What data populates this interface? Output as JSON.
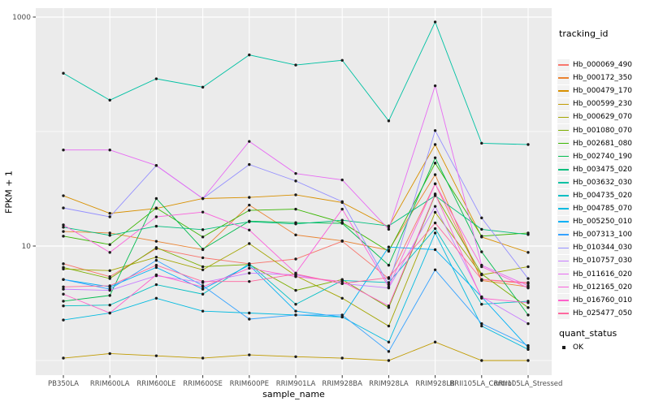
{
  "colors": {
    "panel_bg": "#EBEBEB",
    "grid": "#FFFFFF",
    "point": "#1a1a1a",
    "tick_text": "#4D4D4D",
    "tick_mark": "#333333",
    "legend_key_bg": "#F2F2F2"
  },
  "legend": {
    "tracking_title": "tracking_id",
    "quant_title": "quant_status",
    "quant_item": "OK"
  },
  "chart_data": {
    "type": "line",
    "title": "",
    "xlabel": "sample_name",
    "ylabel": "FPKM + 1",
    "y_scale": "log10",
    "ylim": [
      0.9,
      1200
    ],
    "y_ticks_labeled": [
      1000,
      10
    ],
    "y_gridlines": [
      1000,
      100,
      10,
      1
    ],
    "grid": true,
    "legend_position": "right",
    "legend_title": "tracking_id",
    "quant_status": {
      "title": "quant_status",
      "items": [
        "OK"
      ]
    },
    "categories": [
      "PB350LA",
      "RRIM600LA",
      "RRIM600LE",
      "RRIM600SE",
      "RRIM600PE",
      "RRIM901LA",
      "RRIM928BA",
      "RRIM928LA",
      "RRIM928LB",
      "RRII105LA_Control",
      "RRII105LA_Stressed"
    ],
    "series": [
      {
        "name": "Hb_000069_490",
        "color": "#F8766D",
        "values": [
          7.0,
          5.4,
          9.5,
          7.9,
          7.0,
          7.7,
          11.0,
          5.2,
          35,
          5.1,
          4.7
        ]
      },
      {
        "name": "Hb_000172_350",
        "color": "#EA8331",
        "values": [
          13.4,
          13.0,
          11.0,
          9.3,
          22.8,
          12.5,
          11.1,
          9.2,
          42,
          5.0,
          4.4
        ]
      },
      {
        "name": "Hb_000479_170",
        "color": "#D89000",
        "values": [
          27.5,
          19.3,
          21.3,
          26.0,
          26.6,
          28.0,
          24.0,
          14.7,
          77,
          12.0,
          8.8
        ]
      },
      {
        "name": "Hb_000599_230",
        "color": "#C09B00",
        "values": [
          1.05,
          1.15,
          1.1,
          1.05,
          1.12,
          1.08,
          1.05,
          1.0,
          1.45,
          1.0,
          1.0
        ]
      },
      {
        "name": "Hb_000629_070",
        "color": "#A3A500",
        "values": [
          6.3,
          6.1,
          8.0,
          6.2,
          10.5,
          5.5,
          3.5,
          2.0,
          19.7,
          5.6,
          6.6
        ]
      },
      {
        "name": "Hb_001080_070",
        "color": "#7CAE00",
        "values": [
          6.5,
          5.2,
          9.7,
          6.6,
          6.9,
          4.1,
          5.1,
          2.9,
          28,
          5.7,
          2.9
        ]
      },
      {
        "name": "Hb_002681_080",
        "color": "#39B600",
        "values": [
          12.2,
          10.3,
          21.5,
          12.0,
          20.5,
          21.0,
          16.0,
          9.0,
          53,
          12.2,
          13.0
        ]
      },
      {
        "name": "Hb_002740_190",
        "color": "#00BB4E",
        "values": [
          3.3,
          3.7,
          26.0,
          9.4,
          16.5,
          16.0,
          15.8,
          6.8,
          59,
          8.9,
          2.5
        ]
      },
      {
        "name": "Hb_003475_020",
        "color": "#00BF7D",
        "values": [
          14.6,
          12.4,
          14.9,
          13.9,
          16.3,
          15.6,
          16.8,
          15.0,
          27.5,
          14.0,
          12.6
        ]
      },
      {
        "name": "Hb_003632_030",
        "color": "#00C1A3",
        "values": [
          323,
          188,
          289,
          244,
          467,
          381,
          419,
          124,
          906,
          79,
          77
        ]
      },
      {
        "name": "Hb_004735_020",
        "color": "#00BFC4",
        "values": [
          3.0,
          3.05,
          4.6,
          3.8,
          7.0,
          3.1,
          5.0,
          4.8,
          14.2,
          3.1,
          3.3
        ]
      },
      {
        "name": "Hb_004785_070",
        "color": "#00BAE0",
        "values": [
          2.26,
          2.6,
          3.5,
          2.7,
          2.6,
          2.5,
          2.4,
          1.45,
          13.0,
          2.0,
          1.25
        ]
      },
      {
        "name": "Hb_005250_010",
        "color": "#00B0F6",
        "values": [
          5.1,
          4.4,
          6.5,
          4.2,
          6.8,
          2.7,
          2.4,
          9.8,
          9.3,
          3.6,
          1.3
        ]
      },
      {
        "name": "Hb_007313_100",
        "color": "#35A2FF",
        "values": [
          5.1,
          4.2,
          7.5,
          4.5,
          2.3,
          2.5,
          2.5,
          1.2,
          6.2,
          2.1,
          1.35
        ]
      },
      {
        "name": "Hb_010344_030",
        "color": "#9590FF",
        "values": [
          21.5,
          18.0,
          50.5,
          26.0,
          51.5,
          37.0,
          24.4,
          4.6,
          102,
          17.6,
          5.2
        ]
      },
      {
        "name": "Hb_010757_030",
        "color": "#C77CFF",
        "values": [
          4.2,
          4.1,
          5.5,
          4.8,
          5.8,
          5.6,
          4.7,
          4.3,
          22.2,
          3.6,
          2.1
        ]
      },
      {
        "name": "Hb_011616_020",
        "color": "#E76BF3",
        "values": [
          69,
          69,
          50.5,
          26.0,
          82,
          43,
          37.8,
          14.0,
          251,
          6.8,
          4.5
        ]
      },
      {
        "name": "Hb_012165_020",
        "color": "#FA62DB",
        "values": [
          15.3,
          8.8,
          18.0,
          19.8,
          13.8,
          5.8,
          21.0,
          4.4,
          34.9,
          6.6,
          4.3
        ]
      },
      {
        "name": "Hb_016760_010",
        "color": "#FF61CC",
        "values": [
          3.8,
          2.6,
          5.6,
          4.4,
          6.4,
          5.4,
          4.9,
          3.0,
          28.5,
          3.5,
          3.2
        ]
      },
      {
        "name": "Hb_025477_050",
        "color": "#FF689F",
        "values": [
          4.4,
          4.5,
          6.8,
          4.9,
          4.9,
          5.7,
          4.7,
          5.3,
          15.9,
          5.1,
          4.8
        ]
      }
    ]
  }
}
